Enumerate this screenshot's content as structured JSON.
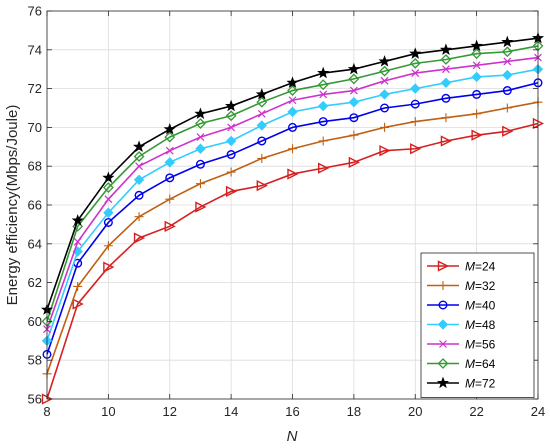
{
  "chart_data": {
    "type": "line",
    "xlabel": "N",
    "ylabel": "Energy efficiency(Mbps/Joule)",
    "xlim": [
      8,
      24
    ],
    "ylim": [
      56,
      76
    ],
    "x_ticks": [
      "8",
      "10",
      "12",
      "14",
      "16",
      "18",
      "20",
      "22",
      "24"
    ],
    "y_ticks": [
      "56",
      "58",
      "60",
      "62",
      "64",
      "66",
      "68",
      "70",
      "72",
      "74",
      "76"
    ],
    "grid": true,
    "legend_position": "bottom-right",
    "x": [
      8,
      9,
      10,
      11,
      12,
      13,
      14,
      15,
      16,
      17,
      18,
      19,
      20,
      21,
      22,
      23,
      24
    ],
    "series": [
      {
        "name": "M=24",
        "label_var": "M",
        "label_value": "=24",
        "color": "#d62020",
        "marker": "triangle-right",
        "values": [
          56.0,
          60.9,
          62.8,
          64.3,
          64.9,
          65.9,
          66.7,
          67.0,
          67.6,
          67.9,
          68.2,
          68.8,
          68.9,
          69.3,
          69.6,
          69.8,
          70.2
        ]
      },
      {
        "name": "M=32",
        "label_var": "M",
        "label_value": "=32",
        "color": "#c06010",
        "marker": "plus",
        "values": [
          57.3,
          61.8,
          63.9,
          65.4,
          66.3,
          67.1,
          67.7,
          68.4,
          68.9,
          69.3,
          69.6,
          70.0,
          70.3,
          70.5,
          70.7,
          71.0,
          71.3
        ]
      },
      {
        "name": "M=40",
        "label_var": "M",
        "label_value": "=40",
        "color": "#0000ee",
        "marker": "circle",
        "values": [
          58.3,
          63.0,
          65.1,
          66.5,
          67.4,
          68.1,
          68.6,
          69.3,
          70.0,
          70.3,
          70.5,
          71.0,
          71.2,
          71.5,
          71.7,
          71.9,
          72.3
        ]
      },
      {
        "name": "M=48",
        "label_var": "M",
        "label_value": "=48",
        "color": "#33ccff",
        "marker": "diamond-filled",
        "values": [
          59.0,
          63.6,
          65.6,
          67.3,
          68.2,
          68.9,
          69.3,
          70.1,
          70.8,
          71.1,
          71.3,
          71.7,
          72.0,
          72.3,
          72.6,
          72.7,
          73.0
        ]
      },
      {
        "name": "M=56",
        "label_var": "M",
        "label_value": "=56",
        "color": "#cc33cc",
        "marker": "x",
        "values": [
          59.6,
          64.1,
          66.3,
          68.0,
          68.8,
          69.5,
          70.0,
          70.7,
          71.4,
          71.7,
          71.9,
          72.4,
          72.8,
          73.0,
          73.2,
          73.4,
          73.6
        ]
      },
      {
        "name": "M=64",
        "label_var": "M",
        "label_value": "=64",
        "color": "#339933",
        "marker": "diamond",
        "values": [
          60.0,
          64.9,
          66.9,
          68.5,
          69.5,
          70.2,
          70.6,
          71.3,
          71.9,
          72.2,
          72.5,
          72.9,
          73.3,
          73.5,
          73.8,
          73.9,
          74.2
        ]
      },
      {
        "name": "M=72",
        "label_var": "M",
        "label_value": "=72",
        "color": "#000000",
        "marker": "star",
        "values": [
          60.6,
          65.2,
          67.4,
          69.0,
          69.9,
          70.7,
          71.1,
          71.7,
          72.3,
          72.8,
          73.0,
          73.4,
          73.8,
          74.0,
          74.2,
          74.4,
          74.6
        ]
      }
    ]
  }
}
